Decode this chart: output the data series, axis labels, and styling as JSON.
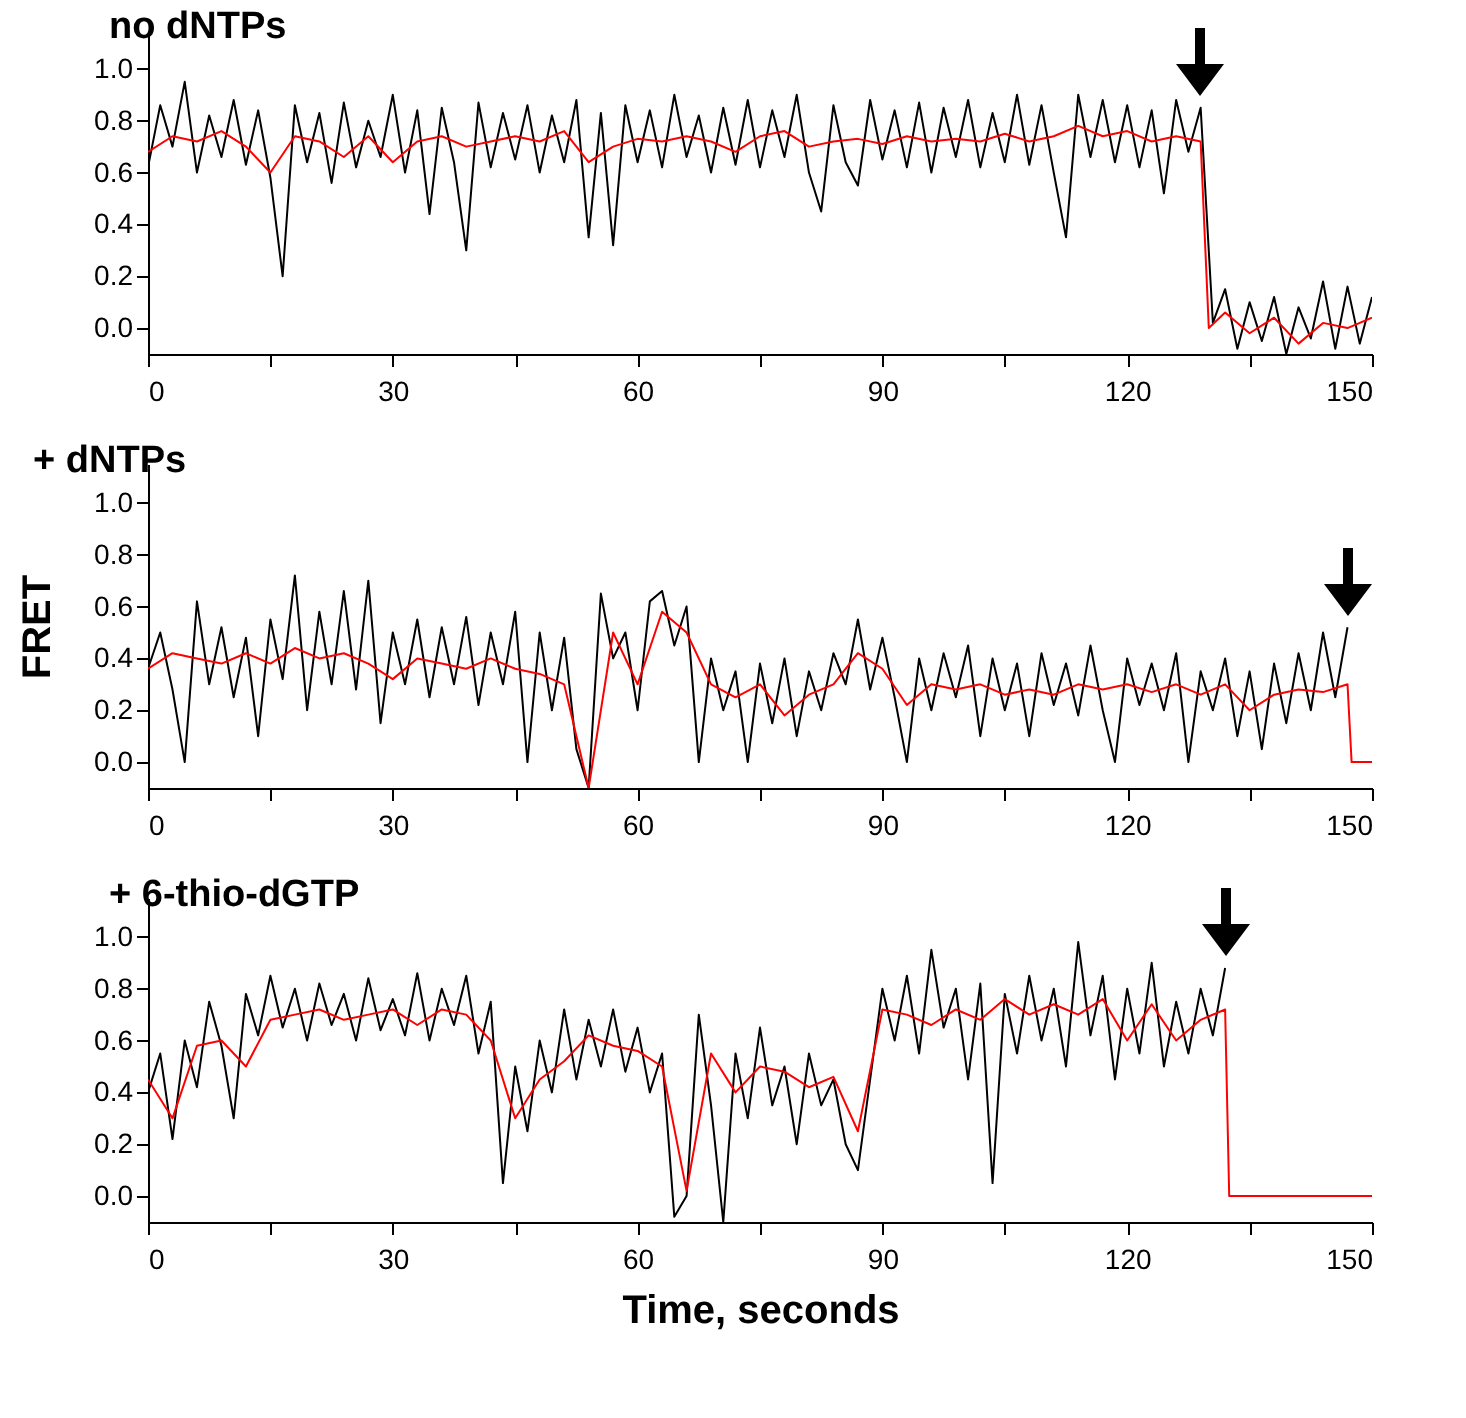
{
  "chart_data": [
    {
      "type": "line",
      "title": "no dNTPs",
      "xlim": [
        0,
        150
      ],
      "ylim": [
        -0.1,
        1.15
      ],
      "xticks": [
        0,
        {
          "value": 15,
          "label": null
        },
        30,
        {
          "value": 45,
          "label": null
        },
        60,
        {
          "value": 75,
          "label": null
        },
        90,
        {
          "value": 105,
          "label": null
        },
        120,
        {
          "value": 135,
          "label": null
        },
        150
      ],
      "yticks": [
        {
          "value": 0,
          "label": "0.0"
        },
        {
          "value": 0.2,
          "label": "0.2"
        },
        {
          "value": 0.4,
          "label": "0.4"
        },
        {
          "value": 0.6,
          "label": "0.6"
        },
        {
          "value": 0.8,
          "label": "0.8"
        },
        {
          "value": 1,
          "label": "1.0"
        }
      ],
      "x": [
        0,
        1.5,
        3,
        4.5,
        6,
        7.5,
        9,
        10.5,
        12,
        13.5,
        15,
        16.5,
        18,
        19.5,
        21,
        22.5,
        24,
        25.5,
        27,
        28.5,
        30,
        31.5,
        33,
        34.5,
        36,
        37.5,
        39,
        40.5,
        42,
        43.5,
        45,
        46.5,
        48,
        49.5,
        51,
        52.5,
        54,
        55.5,
        57,
        58.5,
        60,
        61.5,
        63,
        64.5,
        66,
        67.5,
        69,
        70.5,
        72,
        73.5,
        75,
        76.5,
        78,
        79.5,
        81,
        82.5,
        84,
        85.5,
        87,
        88.5,
        90,
        91.5,
        93,
        94.5,
        96,
        97.5,
        99,
        100.5,
        102,
        103.5,
        105,
        106.5,
        108,
        109.5,
        111,
        112.5,
        114,
        115.5,
        117,
        118.5,
        120,
        121.5,
        123,
        124.5,
        126,
        127.5,
        129,
        130.5,
        132,
        133.5,
        135,
        136.5,
        138,
        139.5,
        141,
        142.5,
        144,
        145.5,
        147,
        148.5,
        150
      ],
      "series": [
        {
          "color": "#000000",
          "values": [
            0.62,
            0.86,
            0.7,
            0.95,
            0.6,
            0.82,
            0.66,
            0.88,
            0.63,
            0.84,
            0.58,
            0.2,
            0.86,
            0.64,
            0.83,
            0.56,
            0.87,
            0.62,
            0.8,
            0.66,
            0.9,
            0.6,
            0.84,
            0.44,
            0.85,
            0.64,
            0.3,
            0.87,
            0.62,
            0.83,
            0.65,
            0.86,
            0.6,
            0.82,
            0.64,
            0.88,
            0.35,
            0.83,
            0.32,
            0.86,
            0.64,
            0.84,
            0.62,
            0.9,
            0.66,
            0.82,
            0.6,
            0.85,
            0.63,
            0.88,
            0.62,
            0.84,
            0.66,
            0.9,
            0.6,
            0.45,
            0.86,
            0.64,
            0.55,
            0.88,
            0.65,
            0.84,
            0.62,
            0.87,
            0.6,
            0.85,
            0.66,
            0.88,
            0.62,
            0.83,
            0.64,
            0.9,
            0.63,
            0.86,
            0.6,
            0.35,
            0.9,
            0.66,
            0.88,
            0.64,
            0.86,
            0.62,
            0.84,
            0.52,
            0.88,
            0.68,
            0.85,
            0.02,
            0.15,
            -0.08,
            0.1,
            -0.05,
            0.12,
            -0.1,
            0.08,
            -0.04,
            0.18,
            -0.08,
            0.16,
            -0.06,
            0.12
          ]
        },
        {
          "color": "#ff0000",
          "x": [
            0,
            3,
            6,
            9,
            12,
            15,
            18,
            21,
            24,
            27,
            30,
            33,
            36,
            39,
            42,
            45,
            48,
            51,
            54,
            57,
            60,
            63,
            66,
            69,
            72,
            75,
            78,
            81,
            84,
            87,
            90,
            93,
            96,
            99,
            102,
            105,
            108,
            111,
            114,
            117,
            120,
            123,
            126,
            129,
            130,
            132,
            135,
            138,
            141,
            144,
            147,
            150
          ],
          "values": [
            0.68,
            0.74,
            0.72,
            0.76,
            0.7,
            0.6,
            0.74,
            0.72,
            0.66,
            0.74,
            0.64,
            0.72,
            0.74,
            0.7,
            0.72,
            0.74,
            0.72,
            0.76,
            0.64,
            0.7,
            0.73,
            0.72,
            0.74,
            0.72,
            0.68,
            0.74,
            0.76,
            0.7,
            0.72,
            0.73,
            0.71,
            0.74,
            0.72,
            0.73,
            0.72,
            0.75,
            0.72,
            0.74,
            0.78,
            0.74,
            0.76,
            0.72,
            0.74,
            0.72,
            0.0,
            0.06,
            -0.02,
            0.04,
            -0.06,
            0.02,
            0.0,
            0.04
          ]
        }
      ]
    },
    {
      "type": "line",
      "title": "+ dNTPs",
      "ylabel": "FRET",
      "xlim": [
        0,
        150
      ],
      "ylim": [
        -0.1,
        1.15
      ],
      "xticks": [
        0,
        {
          "value": 15,
          "label": null
        },
        30,
        {
          "value": 45,
          "label": null
        },
        60,
        {
          "value": 75,
          "label": null
        },
        90,
        {
          "value": 105,
          "label": null
        },
        120,
        {
          "value": 135,
          "label": null
        },
        150
      ],
      "yticks": [
        {
          "value": 0,
          "label": "0.0"
        },
        {
          "value": 0.2,
          "label": "0.2"
        },
        {
          "value": 0.4,
          "label": "0.4"
        },
        {
          "value": 0.6,
          "label": "0.6"
        },
        {
          "value": 0.8,
          "label": "0.8"
        },
        {
          "value": 1,
          "label": "1.0"
        }
      ],
      "x": [
        0,
        1.5,
        3,
        4.5,
        6,
        7.5,
        9,
        10.5,
        12,
        13.5,
        15,
        16.5,
        18,
        19.5,
        21,
        22.5,
        24,
        25.5,
        27,
        28.5,
        30,
        31.5,
        33,
        34.5,
        36,
        37.5,
        39,
        40.5,
        42,
        43.5,
        45,
        46.5,
        48,
        49.5,
        51,
        52.5,
        54,
        55.5,
        57,
        58.5,
        60,
        61.5,
        63,
        64.5,
        66,
        67.5,
        69,
        70.5,
        72,
        73.5,
        75,
        76.5,
        78,
        79.5,
        81,
        82.5,
        84,
        85.5,
        87,
        88.5,
        90,
        91.5,
        93,
        94.5,
        96,
        97.5,
        99,
        100.5,
        102,
        103.5,
        105,
        106.5,
        108,
        109.5,
        111,
        112.5,
        114,
        115.5,
        117,
        118.5,
        120,
        121.5,
        123,
        124.5,
        126,
        127.5,
        129,
        130.5,
        132,
        133.5,
        135,
        136.5,
        138,
        139.5,
        141,
        142.5,
        144,
        145.5,
        147
      ],
      "series": [
        {
          "color": "#000000",
          "values": [
            0.36,
            0.5,
            0.28,
            0.0,
            0.62,
            0.3,
            0.52,
            0.25,
            0.48,
            0.1,
            0.55,
            0.32,
            0.72,
            0.2,
            0.58,
            0.3,
            0.66,
            0.28,
            0.7,
            0.15,
            0.5,
            0.3,
            0.55,
            0.25,
            0.52,
            0.3,
            0.56,
            0.22,
            0.5,
            0.3,
            0.58,
            0.0,
            0.5,
            0.2,
            0.48,
            0.05,
            -0.1,
            0.65,
            0.4,
            0.5,
            0.2,
            0.62,
            0.66,
            0.45,
            0.6,
            0.0,
            0.4,
            0.2,
            0.35,
            0.0,
            0.38,
            0.15,
            0.4,
            0.1,
            0.35,
            0.2,
            0.42,
            0.3,
            0.55,
            0.28,
            0.48,
            0.25,
            0.0,
            0.4,
            0.2,
            0.42,
            0.25,
            0.45,
            0.1,
            0.4,
            0.2,
            0.38,
            0.1,
            0.42,
            0.22,
            0.38,
            0.18,
            0.45,
            0.2,
            0.0,
            0.4,
            0.22,
            0.38,
            0.2,
            0.42,
            0.0,
            0.35,
            0.2,
            0.4,
            0.1,
            0.35,
            0.05,
            0.38,
            0.15,
            0.42,
            0.2,
            0.5,
            0.25,
            0.52
          ]
        },
        {
          "color": "#ff0000",
          "x": [
            0,
            3,
            6,
            9,
            12,
            15,
            18,
            21,
            24,
            27,
            30,
            33,
            36,
            39,
            42,
            45,
            48,
            51,
            54,
            57,
            60,
            63,
            66,
            69,
            72,
            75,
            78,
            81,
            84,
            87,
            90,
            93,
            96,
            99,
            102,
            105,
            108,
            111,
            114,
            117,
            120,
            123,
            126,
            129,
            132,
            135,
            138,
            141,
            144,
            147,
            147.5,
            150
          ],
          "values": [
            0.36,
            0.42,
            0.4,
            0.38,
            0.42,
            0.38,
            0.44,
            0.4,
            0.42,
            0.38,
            0.32,
            0.4,
            0.38,
            0.36,
            0.4,
            0.36,
            0.34,
            0.3,
            -0.1,
            0.5,
            0.3,
            0.58,
            0.5,
            0.3,
            0.25,
            0.3,
            0.18,
            0.26,
            0.3,
            0.42,
            0.36,
            0.22,
            0.3,
            0.28,
            0.3,
            0.26,
            0.28,
            0.26,
            0.3,
            0.28,
            0.3,
            0.27,
            0.3,
            0.26,
            0.3,
            0.2,
            0.26,
            0.28,
            0.27,
            0.3,
            0.0,
            0.0
          ]
        }
      ]
    },
    {
      "type": "line",
      "title": "+ 6-thio-dGTP",
      "xlabel": "Time, seconds",
      "xlim": [
        0,
        150
      ],
      "ylim": [
        -0.1,
        1.15
      ],
      "xticks": [
        0,
        {
          "value": 15,
          "label": null
        },
        30,
        {
          "value": 45,
          "label": null
        },
        60,
        {
          "value": 75,
          "label": null
        },
        90,
        {
          "value": 105,
          "label": null
        },
        120,
        {
          "value": 135,
          "label": null
        },
        150
      ],
      "yticks": [
        {
          "value": 0,
          "label": "0.0"
        },
        {
          "value": 0.2,
          "label": "0.2"
        },
        {
          "value": 0.4,
          "label": "0.4"
        },
        {
          "value": 0.6,
          "label": "0.6"
        },
        {
          "value": 0.8,
          "label": "0.8"
        },
        {
          "value": 1,
          "label": "1.0"
        }
      ],
      "x": [
        0,
        1.5,
        3,
        4.5,
        6,
        7.5,
        9,
        10.5,
        12,
        13.5,
        15,
        16.5,
        18,
        19.5,
        21,
        22.5,
        24,
        25.5,
        27,
        28.5,
        30,
        31.5,
        33,
        34.5,
        36,
        37.5,
        39,
        40.5,
        42,
        43.5,
        45,
        46.5,
        48,
        49.5,
        51,
        52.5,
        54,
        55.5,
        57,
        58.5,
        60,
        61.5,
        63,
        64.5,
        66,
        67.5,
        69,
        70.5,
        72,
        73.5,
        75,
        76.5,
        78,
        79.5,
        81,
        82.5,
        84,
        85.5,
        87,
        88.5,
        90,
        91.5,
        93,
        94.5,
        96,
        97.5,
        99,
        100.5,
        102,
        103.5,
        105,
        106.5,
        108,
        109.5,
        111,
        112.5,
        114,
        115.5,
        117,
        118.5,
        120,
        121.5,
        123,
        124.5,
        126,
        127.5,
        129,
        130.5,
        132
      ],
      "series": [
        {
          "color": "#000000",
          "values": [
            0.4,
            0.55,
            0.22,
            0.6,
            0.42,
            0.75,
            0.58,
            0.3,
            0.78,
            0.62,
            0.85,
            0.65,
            0.8,
            0.6,
            0.82,
            0.66,
            0.78,
            0.6,
            0.84,
            0.64,
            0.76,
            0.62,
            0.86,
            0.6,
            0.8,
            0.66,
            0.85,
            0.55,
            0.75,
            0.05,
            0.5,
            0.25,
            0.6,
            0.4,
            0.72,
            0.45,
            0.68,
            0.5,
            0.72,
            0.48,
            0.65,
            0.4,
            0.55,
            -0.08,
            0.0,
            0.7,
            0.35,
            -0.1,
            0.55,
            0.3,
            0.65,
            0.35,
            0.5,
            0.2,
            0.55,
            0.35,
            0.45,
            0.2,
            0.1,
            0.45,
            0.8,
            0.6,
            0.85,
            0.55,
            0.95,
            0.65,
            0.8,
            0.45,
            0.82,
            0.05,
            0.78,
            0.55,
            0.85,
            0.6,
            0.8,
            0.5,
            0.98,
            0.62,
            0.85,
            0.45,
            0.8,
            0.55,
            0.9,
            0.5,
            0.75,
            0.55,
            0.8,
            0.62,
            0.88
          ]
        },
        {
          "color": "#ff0000",
          "x": [
            0,
            3,
            6,
            9,
            12,
            15,
            18,
            21,
            24,
            27,
            30,
            33,
            36,
            39,
            42,
            45,
            48,
            51,
            54,
            57,
            60,
            63,
            66,
            69,
            72,
            75,
            78,
            81,
            84,
            87,
            90,
            93,
            96,
            99,
            102,
            105,
            108,
            111,
            114,
            117,
            120,
            123,
            126,
            129,
            132,
            132.5,
            150
          ],
          "values": [
            0.45,
            0.3,
            0.58,
            0.6,
            0.5,
            0.68,
            0.7,
            0.72,
            0.68,
            0.7,
            0.72,
            0.66,
            0.72,
            0.7,
            0.6,
            0.3,
            0.45,
            0.52,
            0.62,
            0.58,
            0.56,
            0.5,
            0.02,
            0.55,
            0.4,
            0.5,
            0.48,
            0.42,
            0.46,
            0.25,
            0.72,
            0.7,
            0.66,
            0.72,
            0.68,
            0.76,
            0.7,
            0.74,
            0.7,
            0.76,
            0.6,
            0.74,
            0.6,
            0.68,
            0.72,
            0.0,
            0.0
          ]
        }
      ]
    }
  ]
}
